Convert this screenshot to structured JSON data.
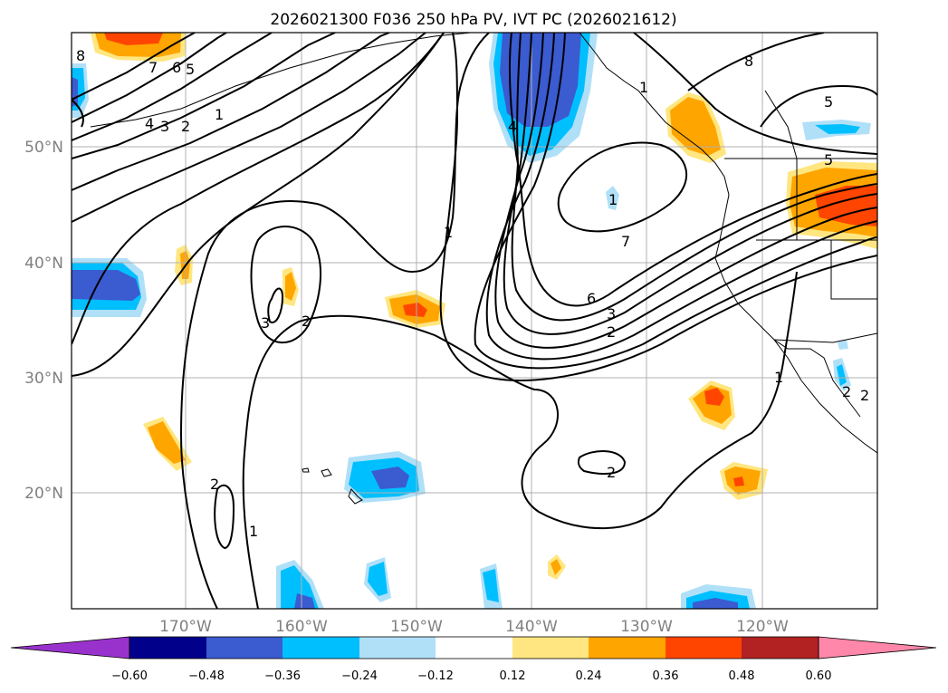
{
  "title": "2026021300 F036 250 hPa PV, IVT PC (2026021612)",
  "map": {
    "lat_labels": [
      "50°N",
      "40°N",
      "30°N",
      "20°N"
    ],
    "lon_labels": [
      "170°W",
      "160°W",
      "150°W",
      "140°W",
      "130°W",
      "120°W"
    ],
    "contour_labels": [
      "8",
      "7",
      "6",
      "5",
      "4",
      "3",
      "2",
      "1",
      "1",
      "2",
      "3",
      "1",
      "4",
      "1",
      "6",
      "7",
      "3",
      "2",
      "8",
      "5",
      "5",
      "2",
      "2",
      "1",
      "1",
      "2",
      "2"
    ]
  },
  "colorbar": {
    "tick_labels": [
      "−0.60",
      "−0.48",
      "−0.36",
      "−0.24",
      "−0.12",
      "0.12",
      "0.24",
      "0.36",
      "0.48",
      "0.60"
    ],
    "colors": [
      "#9932cc",
      "#00008b",
      "#3b5bd0",
      "#00bfff",
      "#b0e0f8",
      "#ffffff",
      "#ffe680",
      "#ffa500",
      "#ff4500",
      "#b22222",
      "#ff88aa"
    ]
  }
}
